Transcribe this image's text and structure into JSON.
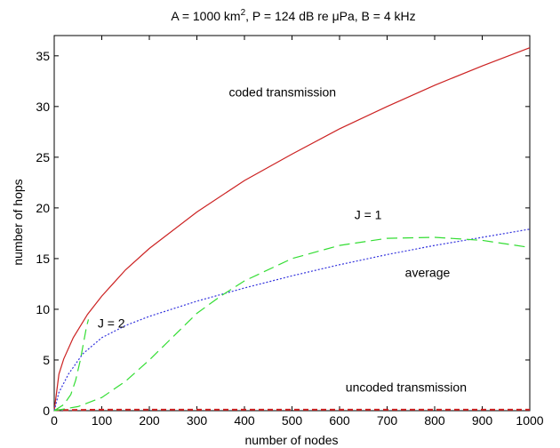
{
  "chart_data": {
    "type": "line",
    "title_parts": [
      "A = 1000 km",
      "2",
      ", P = 124 dB re μPa, B = 4 kHz"
    ],
    "xlabel": "number of nodes",
    "ylabel": "number of hops",
    "xlim": [
      0,
      1000
    ],
    "ylim": [
      0,
      37
    ],
    "xticks": [
      0,
      100,
      200,
      300,
      400,
      500,
      600,
      700,
      800,
      900,
      1000
    ],
    "yticks": [
      0,
      5,
      10,
      15,
      20,
      25,
      30,
      35
    ],
    "grid": false,
    "series": [
      {
        "key": "coded",
        "color": "#cc2222",
        "dash": "none",
        "x": [
          0,
          10,
          20,
          40,
          70,
          100,
          150,
          200,
          300,
          400,
          500,
          600,
          700,
          800,
          900,
          1000
        ],
        "y": [
          0,
          3.6,
          5.1,
          7.2,
          9.5,
          11.3,
          13.9,
          16.0,
          19.6,
          22.7,
          25.3,
          27.8,
          30.0,
          32.1,
          34.0,
          35.8
        ]
      },
      {
        "key": "uncoded",
        "color": "#cc2222",
        "dash": "6,4",
        "x": [
          0,
          100,
          200,
          300,
          400,
          500,
          600,
          700,
          800,
          900,
          1000
        ],
        "y": [
          0.05,
          0.1,
          0.1,
          0.1,
          0.1,
          0.1,
          0.1,
          0.1,
          0.1,
          0.1,
          0.1
        ]
      },
      {
        "key": "average",
        "color": "#3333dd",
        "dash": "2,2",
        "x": [
          0,
          10,
          30,
          60,
          100,
          150,
          200,
          300,
          400,
          500,
          600,
          700,
          800,
          900,
          1000
        ],
        "y": [
          0,
          1.8,
          3.6,
          5.6,
          7.2,
          8.4,
          9.3,
          10.8,
          12.1,
          13.3,
          14.4,
          15.4,
          16.3,
          17.1,
          17.9
        ]
      },
      {
        "key": "J1",
        "color": "#33dd33",
        "dash": "12,6",
        "x": [
          0,
          50,
          100,
          150,
          200,
          250,
          300,
          350,
          400,
          500,
          600,
          700,
          800,
          900,
          1000
        ],
        "y": [
          0,
          0.4,
          1.3,
          2.9,
          5.0,
          7.3,
          9.6,
          11.3,
          12.8,
          15.0,
          16.3,
          17.0,
          17.1,
          16.8,
          16.1
        ]
      },
      {
        "key": "J2",
        "color": "#33dd33",
        "dash": "12,6",
        "x": [
          0,
          20,
          35,
          45,
          55,
          62,
          68,
          72
        ],
        "y": [
          0,
          0.6,
          1.6,
          3.0,
          5.0,
          6.8,
          8.3,
          9.0
        ]
      }
    ],
    "annotations": [
      {
        "text": "coded transmission",
        "x": 480,
        "y": 31.0
      },
      {
        "text": "uncoded transmission",
        "x": 740,
        "y": 1.9
      },
      {
        "text": "J = 1",
        "x": 660,
        "y": 18.9
      },
      {
        "text": "J = 2",
        "x": 120,
        "y": 8.2
      },
      {
        "text": "average",
        "x": 785,
        "y": 13.2
      }
    ]
  }
}
